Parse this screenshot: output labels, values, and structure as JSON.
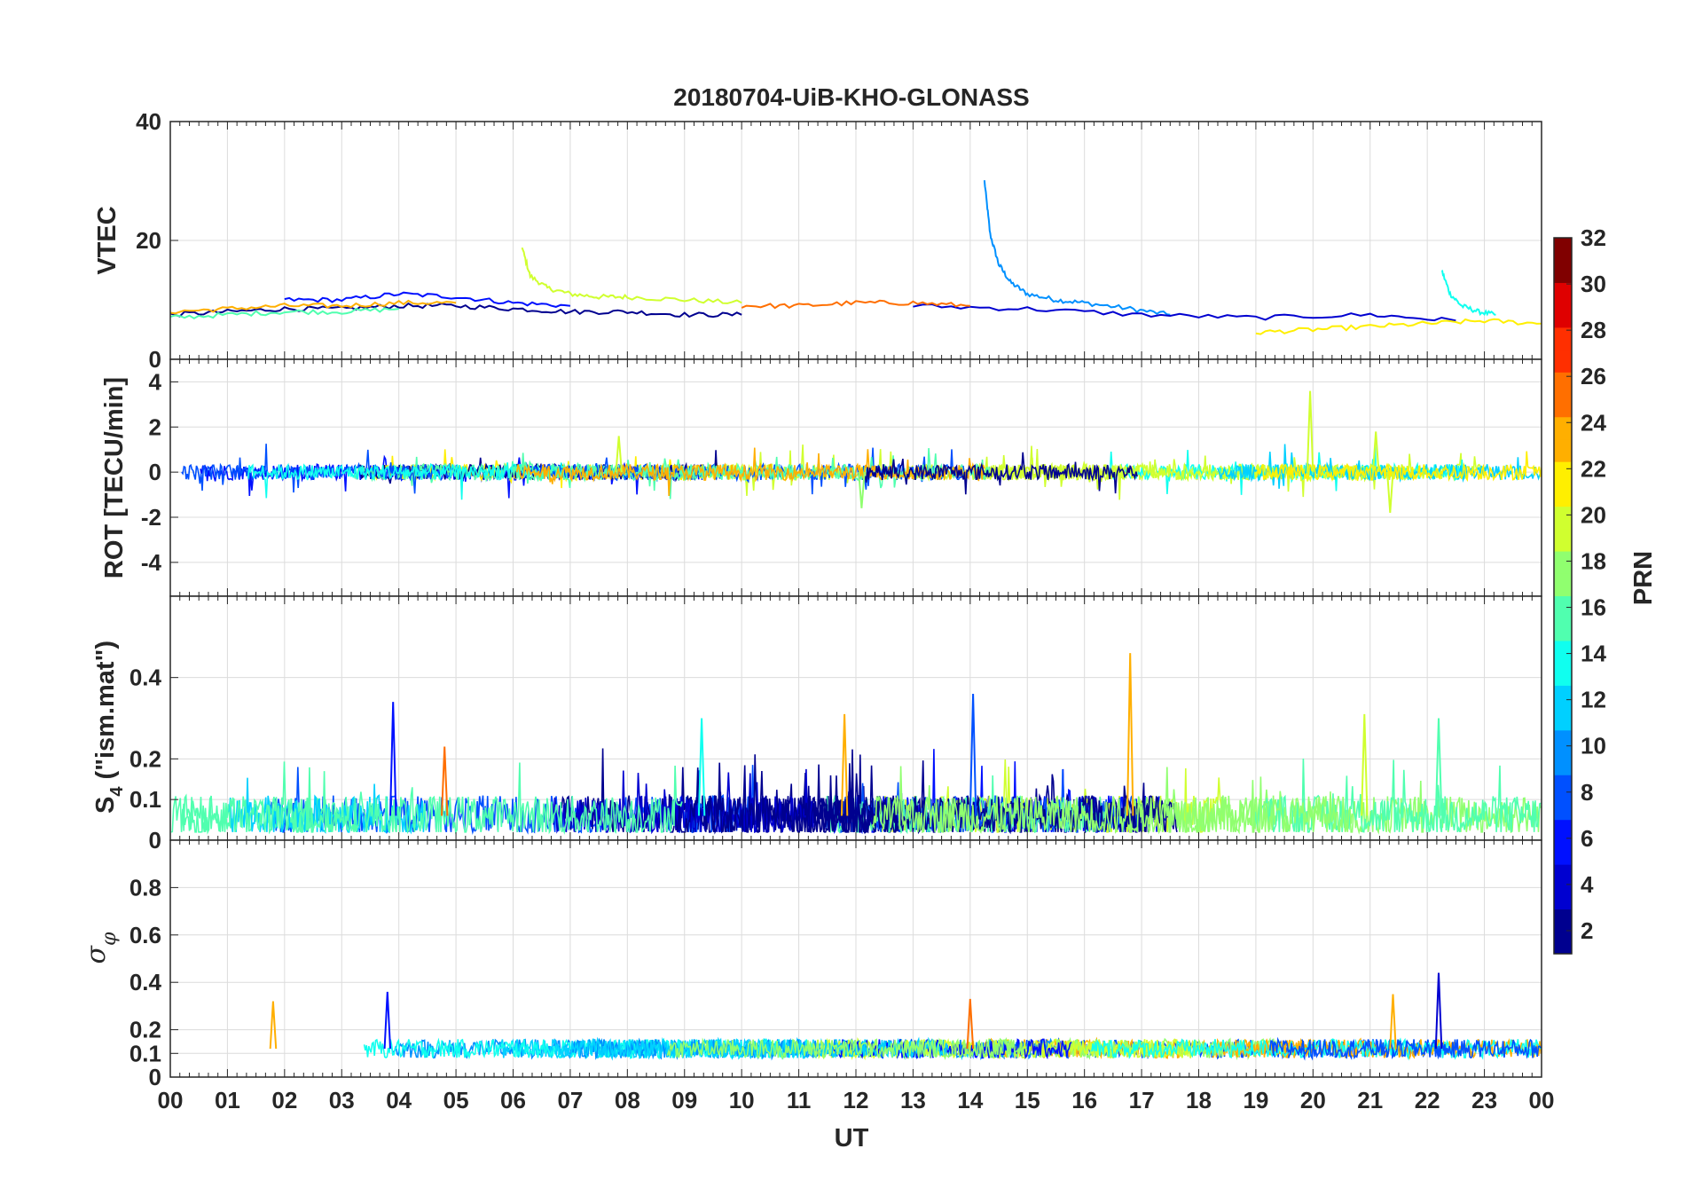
{
  "figure": {
    "title": "20180704-UiB-KHO-GLONASS",
    "xlabel": "UT",
    "x_tick_labels": [
      "00",
      "01",
      "02",
      "03",
      "04",
      "05",
      "06",
      "07",
      "08",
      "09",
      "10",
      "11",
      "12",
      "13",
      "14",
      "15",
      "16",
      "17",
      "18",
      "19",
      "20",
      "21",
      "22",
      "23",
      "00"
    ],
    "colorbar": {
      "label": "PRN",
      "range": [
        1,
        32
      ],
      "tick_labels": [
        "2",
        "4",
        "6",
        "8",
        "10",
        "12",
        "14",
        "16",
        "18",
        "20",
        "22",
        "24",
        "26",
        "28",
        "30",
        "32"
      ],
      "colormap": "jet",
      "levels": 32,
      "colors": [
        "#00008f",
        "#0000d0",
        "#0010ff",
        "#0050ff",
        "#0090ff",
        "#00d0ff",
        "#10ffef",
        "#50ffaf",
        "#90ff6f",
        "#d0ff2f",
        "#ffef00",
        "#ffaf00",
        "#ff6f00",
        "#ff2f00",
        "#df0000",
        "#800000"
      ]
    }
  },
  "chart_data": [
    {
      "type": "line",
      "panel": "VTEC",
      "ylabel": "VTEC",
      "xlim": [
        0,
        24
      ],
      "ylim": [
        0,
        40
      ],
      "yticks": [
        0,
        20,
        40
      ],
      "ytick_labels": [
        "0",
        "20",
        "40"
      ],
      "series": [
        {
          "prn": 9,
          "color": "#0090ff",
          "x": [
            14.25,
            14.35,
            14.5,
            14.7,
            15.0,
            15.5,
            16.0,
            16.8,
            17.5
          ],
          "y": [
            30,
            21,
            16,
            13,
            11,
            10,
            9.5,
            8.5,
            7.5
          ]
        },
        {
          "prn": 19,
          "color": "#d0ff2f",
          "x": [
            6.15,
            6.3,
            6.6,
            7.0,
            7.5,
            8.0,
            9.0,
            10.0
          ],
          "y": [
            19,
            14,
            12,
            11,
            10.5,
            10.5,
            10,
            9.5
          ]
        },
        {
          "prn": 13,
          "color": "#10ffef",
          "x": [
            22.25,
            22.4,
            22.6,
            22.9,
            23.2
          ],
          "y": [
            15,
            11,
            9,
            8,
            7.5
          ]
        },
        {
          "prn": 3,
          "color": "#0010ff",
          "x": [
            2.0,
            3.0,
            4.0,
            5.0,
            6.0,
            7.0
          ],
          "y": [
            10,
            10,
            11,
            10.5,
            9.5,
            9
          ]
        },
        {
          "prn": 1,
          "color": "#00008f",
          "x": [
            0.0,
            1.0,
            2.0,
            3.0,
            4.0,
            5.0,
            6.0,
            7.0,
            8.0,
            9.0,
            10.0
          ],
          "y": [
            7.5,
            8,
            8.5,
            8.5,
            9,
            9,
            8.5,
            8,
            8,
            7.5,
            7.5
          ]
        },
        {
          "prn": 23,
          "color": "#ffaf00",
          "x": [
            0.0,
            1.0,
            2.0,
            3.0,
            4.0,
            5.0
          ],
          "y": [
            8,
            8.5,
            9,
            9,
            9.5,
            9.5
          ]
        },
        {
          "prn": 15,
          "color": "#50ffaf",
          "x": [
            0.0,
            1.0,
            2.0,
            3.0,
            4.0
          ],
          "y": [
            7,
            7.5,
            8,
            8,
            8.5
          ]
        },
        {
          "prn": 2,
          "color": "#0000d0",
          "x": [
            13.0,
            15.0,
            17.0,
            19.0,
            21.0,
            22.5
          ],
          "y": [
            9,
            8.5,
            7.5,
            7,
            7.5,
            6.5
          ]
        },
        {
          "prn": 20,
          "color": "#ffef00",
          "x": [
            19.0,
            20.0,
            21.0,
            22.0,
            23.0,
            24.0
          ],
          "y": [
            4.5,
            5,
            5.5,
            6,
            6.5,
            6
          ]
        },
        {
          "prn": 24,
          "color": "#ff6f00",
          "x": [
            10.0,
            11.0,
            12.0,
            13.0,
            14.0
          ],
          "y": [
            9,
            9,
            9.5,
            9.5,
            9
          ]
        }
      ]
    },
    {
      "type": "line",
      "panel": "ROT",
      "ylabel": "ROT [TECU/min]",
      "xlim": [
        0,
        24
      ],
      "ylim": [
        -5.5,
        5
      ],
      "yticks": [
        -4,
        -2,
        0,
        2,
        4
      ],
      "ytick_labels": [
        "-4",
        "-2",
        "0",
        "2",
        "4"
      ],
      "spikes": [
        {
          "x": 19.95,
          "y": 3.6,
          "color": "#d0ff2f"
        },
        {
          "x": 21.1,
          "y": 1.8,
          "color": "#d0ff2f"
        },
        {
          "x": 21.35,
          "y": -1.8,
          "color": "#d0ff2f"
        },
        {
          "x": 7.85,
          "y": 1.6,
          "color": "#d0ff2f"
        },
        {
          "x": 12.1,
          "y": -1.6,
          "color": "#90ff6f"
        }
      ]
    },
    {
      "type": "line",
      "panel": "S4",
      "ylabel": "S_4 (\"ism.mat\")",
      "xlim": [
        0,
        24
      ],
      "ylim": [
        0,
        0.6
      ],
      "yticks": [
        0,
        0.1,
        0.2,
        0.4
      ],
      "ytick_labels": [
        "0",
        "0.1",
        "0.2",
        "0.4"
      ],
      "spikes": [
        {
          "x": 3.9,
          "y": 0.34,
          "color": "#0010ff"
        },
        {
          "x": 14.05,
          "y": 0.36,
          "color": "#0050ff"
        },
        {
          "x": 16.8,
          "y": 0.46,
          "color": "#ffaf00"
        },
        {
          "x": 11.8,
          "y": 0.31,
          "color": "#ffaf00"
        },
        {
          "x": 20.9,
          "y": 0.31,
          "color": "#d0ff2f"
        },
        {
          "x": 22.2,
          "y": 0.3,
          "color": "#50ffaf"
        },
        {
          "x": 9.3,
          "y": 0.3,
          "color": "#10ffef"
        },
        {
          "x": 4.8,
          "y": 0.23,
          "color": "#ff6f00"
        }
      ]
    },
    {
      "type": "line",
      "panel": "sigma_phi",
      "ylabel": "σ φ",
      "xlim": [
        0,
        24
      ],
      "ylim": [
        0,
        1
      ],
      "yticks": [
        0,
        0.1,
        0.2,
        0.4,
        0.6,
        0.8
      ],
      "ytick_labels": [
        "0",
        "0.1",
        "0.2",
        "0.4",
        "0.6",
        "0.8"
      ],
      "spikes": [
        {
          "x": 22.2,
          "y": 0.44,
          "color": "#0000d0"
        },
        {
          "x": 3.8,
          "y": 0.36,
          "color": "#0010ff"
        },
        {
          "x": 1.8,
          "y": 0.32,
          "color": "#ffaf00"
        },
        {
          "x": 14.0,
          "y": 0.33,
          "color": "#ff6f00"
        },
        {
          "x": 21.4,
          "y": 0.35,
          "color": "#ffaf00"
        }
      ]
    }
  ]
}
